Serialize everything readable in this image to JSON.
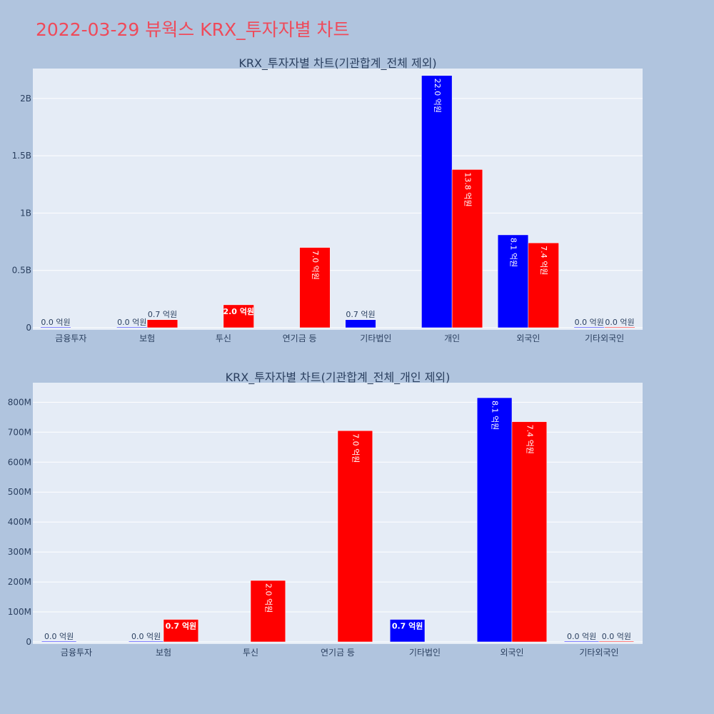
{
  "page": {
    "title": "2022-03-29 뷰웍스 KRX_투자자별 차트"
  },
  "colors": {
    "buy": "#0000ff",
    "sell": "#ff0000",
    "plot_bg": "#e5ecf6",
    "page_bg": "#b0c4de",
    "title": "#ef4a5a"
  },
  "chart_data": [
    {
      "type": "bar",
      "title": "KRX_투자자별 차트(기관합계_전체 제외)",
      "categories": [
        "금융투자",
        "보험",
        "투신",
        "연기금 등",
        "기타법인",
        "개인",
        "외국인",
        "기타외국인"
      ],
      "series": [
        {
          "color": "#0000ff",
          "values": [
            0,
            0,
            0,
            0,
            70000000,
            2200000000,
            810000000,
            0
          ],
          "labels": [
            "0.0 억원",
            "0.0 억원",
            "",
            "",
            "0.7 억원",
            "22.0 억원",
            "8.1 억원",
            "0.0 억원"
          ]
        },
        {
          "color": "#ff0000",
          "values": [
            0,
            70000000,
            200000000,
            700000000,
            0,
            1380000000,
            740000000,
            0
          ],
          "labels": [
            "",
            "0.7 억원",
            "2.0 억원",
            "7.0 억원",
            "",
            "13.8 억원",
            "7.4 억원",
            "0.0 억원"
          ]
        }
      ],
      "yticks": [
        0,
        500000000,
        1000000000,
        1500000000,
        2000000000
      ],
      "ytick_labels": [
        "0",
        "0.5B",
        "1B",
        "1.5B",
        "2B"
      ],
      "ylim": [
        0,
        2242000000
      ]
    },
    {
      "type": "bar",
      "title": "KRX_투자자별 차트(기관합계_전체_개인 제외)",
      "categories": [
        "금융투자",
        "보험",
        "투신",
        "연기금 등",
        "기타법인",
        "외국인",
        "기타외국인"
      ],
      "series": [
        {
          "color": "#0000ff",
          "values": [
            0,
            0,
            0,
            0,
            75000000,
            815000000,
            0
          ],
          "labels": [
            "0.0 억원",
            "0.0 억원",
            "",
            "",
            "0.7 억원",
            "8.1 억원",
            "0.0 억원"
          ]
        },
        {
          "color": "#ff0000",
          "values": [
            0,
            75000000,
            205000000,
            705000000,
            0,
            735000000,
            0
          ],
          "labels": [
            "",
            "0.7 억원",
            "2.0 억원",
            "7.0 억원",
            "",
            "7.4 억원",
            "0.0 억원"
          ]
        }
      ],
      "yticks": [
        0,
        100000000,
        200000000,
        300000000,
        400000000,
        500000000,
        600000000,
        700000000,
        800000000
      ],
      "ytick_labels": [
        "0",
        "100M",
        "200M",
        "300M",
        "400M",
        "500M",
        "600M",
        "700M",
        "800M"
      ],
      "ylim": [
        0,
        858000000
      ]
    }
  ]
}
